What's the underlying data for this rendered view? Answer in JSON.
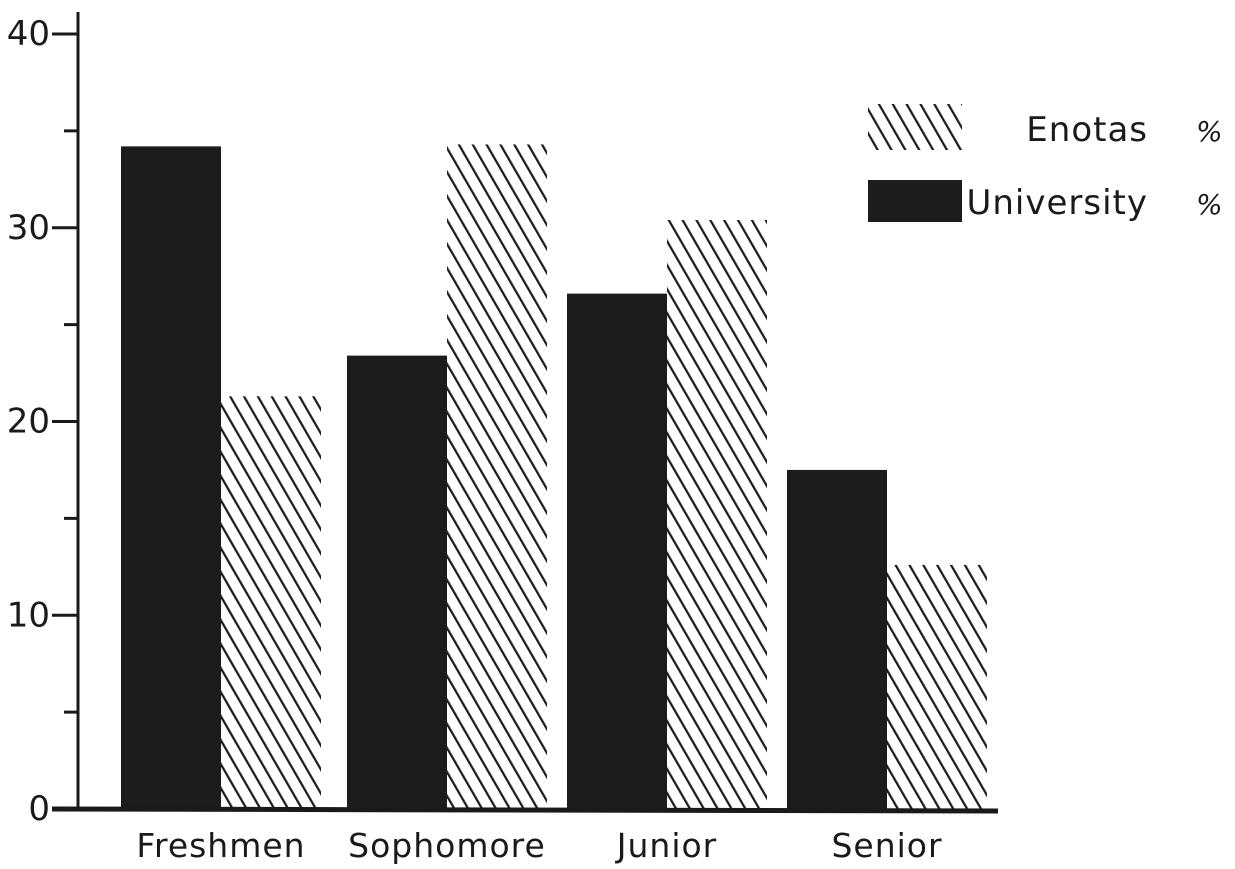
{
  "chart_data": {
    "type": "bar",
    "title": "",
    "xlabel": "",
    "ylabel": "",
    "categories": [
      "Freshmen",
      "Sophomore",
      "Junior",
      "Senior"
    ],
    "series": [
      {
        "name": "University %",
        "label": "University",
        "unit": "%",
        "fill": "solid",
        "color": "#1c1c1c",
        "values": [
          34.2,
          23.4,
          26.6,
          17.5
        ]
      },
      {
        "name": "Enotas %",
        "label": "Enotas",
        "unit": "%",
        "fill": "hatched",
        "color": "#1c1c1c",
        "values": [
          21.3,
          34.3,
          30.4,
          12.6
        ]
      }
    ],
    "ylim": [
      0,
      40
    ],
    "yticks_major": [
      0,
      10,
      20,
      30,
      40
    ],
    "yticks_minor": [
      5,
      15,
      25,
      35
    ],
    "grid": false,
    "legend_position": "top-right"
  }
}
